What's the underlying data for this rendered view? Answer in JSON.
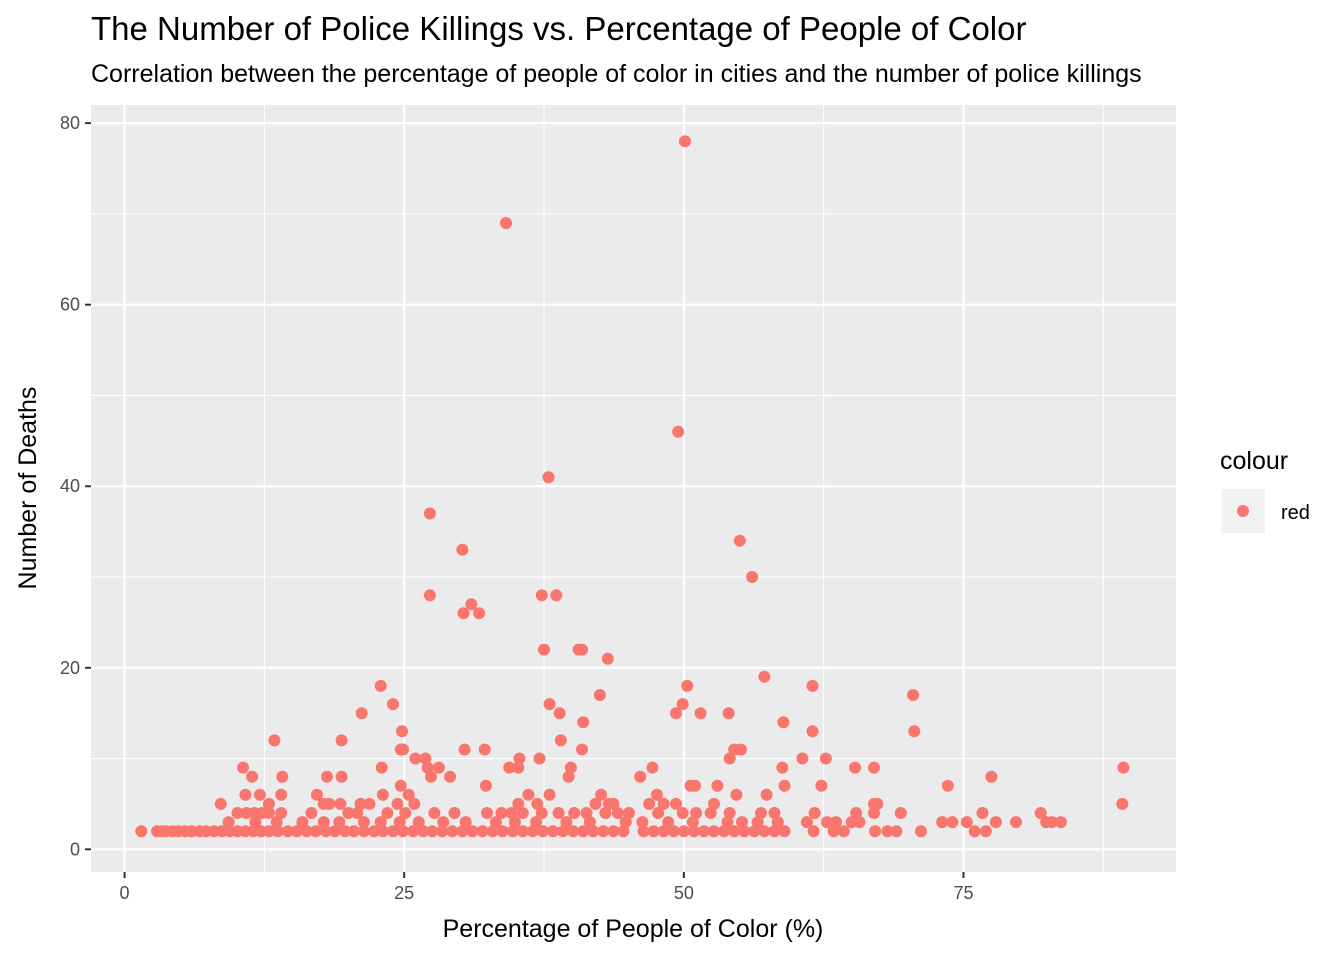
{
  "chart_data": {
    "type": "scatter",
    "title": "The Number of Police Killings vs. Percentage of People of Color",
    "subtitle": "Correlation between the percentage of people of color in cities and the number of police killings",
    "xlabel": "Percentage of People of Color (%)",
    "ylabel": "Number of Deaths",
    "xlim": [
      -3,
      94
    ],
    "ylim": [
      -2.5,
      82
    ],
    "x_ticks": [
      0,
      25,
      50,
      75
    ],
    "x_tick_labels": [
      "0",
      "25",
      "50",
      "75"
    ],
    "y_ticks": [
      0,
      20,
      40,
      60,
      80
    ],
    "y_tick_labels": [
      "0",
      "20",
      "40",
      "60",
      "80"
    ],
    "grid": true,
    "background": "#ebebeb",
    "point_color": "#f8766d",
    "legend": {
      "title": "colour",
      "position": "right",
      "entries": [
        {
          "label": "red",
          "color": "#f8766d"
        }
      ]
    },
    "series": [
      {
        "name": "red",
        "points": [
          [
            50.1,
            78
          ],
          [
            34.1,
            69
          ],
          [
            49.5,
            46
          ],
          [
            37.9,
            41
          ],
          [
            27.3,
            37
          ],
          [
            55.0,
            34
          ],
          [
            30.2,
            33
          ],
          [
            56.1,
            30
          ],
          [
            27.3,
            28
          ],
          [
            37.3,
            28
          ],
          [
            38.6,
            28
          ],
          [
            31.0,
            27
          ],
          [
            30.3,
            26
          ],
          [
            31.7,
            26
          ],
          [
            37.5,
            22
          ],
          [
            40.6,
            22
          ],
          [
            40.9,
            22
          ],
          [
            43.2,
            21
          ],
          [
            57.2,
            19
          ],
          [
            22.9,
            18
          ],
          [
            50.3,
            18
          ],
          [
            61.5,
            18
          ],
          [
            42.5,
            17
          ],
          [
            70.5,
            17
          ],
          [
            24.0,
            16
          ],
          [
            38.0,
            16
          ],
          [
            49.9,
            16
          ],
          [
            21.2,
            15
          ],
          [
            38.9,
            15
          ],
          [
            49.3,
            15
          ],
          [
            51.5,
            15
          ],
          [
            54.0,
            15
          ],
          [
            41.0,
            14
          ],
          [
            58.9,
            14
          ],
          [
            24.8,
            13
          ],
          [
            61.5,
            13
          ],
          [
            70.6,
            13
          ],
          [
            13.4,
            12
          ],
          [
            19.4,
            12
          ],
          [
            39.0,
            12
          ],
          [
            24.7,
            11
          ],
          [
            24.9,
            11
          ],
          [
            30.4,
            11
          ],
          [
            32.2,
            11
          ],
          [
            40.9,
            11
          ],
          [
            54.5,
            11
          ],
          [
            55.1,
            11
          ],
          [
            26.0,
            10
          ],
          [
            26.9,
            10
          ],
          [
            35.3,
            10
          ],
          [
            37.1,
            10
          ],
          [
            54.1,
            10
          ],
          [
            60.6,
            10
          ],
          [
            62.7,
            10
          ],
          [
            10.6,
            9
          ],
          [
            23.0,
            9
          ],
          [
            27.1,
            9
          ],
          [
            28.1,
            9
          ],
          [
            34.4,
            9
          ],
          [
            35.2,
            9
          ],
          [
            39.9,
            9
          ],
          [
            47.2,
            9
          ],
          [
            58.8,
            9
          ],
          [
            65.3,
            9
          ],
          [
            67.0,
            9
          ],
          [
            89.3,
            9
          ],
          [
            11.4,
            8
          ],
          [
            14.1,
            8
          ],
          [
            18.1,
            8
          ],
          [
            19.4,
            8
          ],
          [
            27.4,
            8
          ],
          [
            29.1,
            8
          ],
          [
            39.7,
            8
          ],
          [
            46.1,
            8
          ],
          [
            77.5,
            8
          ],
          [
            24.7,
            7
          ],
          [
            32.3,
            7
          ],
          [
            50.6,
            7
          ],
          [
            51.0,
            7
          ],
          [
            53.0,
            7
          ],
          [
            59.0,
            7
          ],
          [
            62.3,
            7
          ],
          [
            73.6,
            7
          ],
          [
            10.8,
            6
          ],
          [
            12.1,
            6
          ],
          [
            14.0,
            6
          ],
          [
            17.2,
            6
          ],
          [
            23.1,
            6
          ],
          [
            25.4,
            6
          ],
          [
            36.1,
            6
          ],
          [
            38.0,
            6
          ],
          [
            42.6,
            6
          ],
          [
            47.6,
            6
          ],
          [
            54.7,
            6
          ],
          [
            57.4,
            6
          ],
          [
            8.6,
            5
          ],
          [
            12.9,
            5
          ],
          [
            17.8,
            5
          ],
          [
            18.3,
            5
          ],
          [
            19.3,
            5
          ],
          [
            21.1,
            5
          ],
          [
            21.9,
            5
          ],
          [
            24.4,
            5
          ],
          [
            25.9,
            5
          ],
          [
            35.2,
            5
          ],
          [
            36.9,
            5
          ],
          [
            42.1,
            5
          ],
          [
            43.3,
            5
          ],
          [
            43.7,
            5
          ],
          [
            46.9,
            5
          ],
          [
            48.2,
            5
          ],
          [
            49.3,
            5
          ],
          [
            52.7,
            5
          ],
          [
            67.0,
            5
          ],
          [
            67.3,
            5
          ],
          [
            89.2,
            5
          ],
          [
            10.1,
            4
          ],
          [
            10.9,
            4
          ],
          [
            11.6,
            4
          ],
          [
            12.3,
            4
          ],
          [
            12.9,
            4
          ],
          [
            14.0,
            4
          ],
          [
            16.7,
            4
          ],
          [
            20.0,
            4
          ],
          [
            20.8,
            4
          ],
          [
            23.5,
            4
          ],
          [
            25.1,
            4
          ],
          [
            27.7,
            4
          ],
          [
            29.5,
            4
          ],
          [
            32.4,
            4
          ],
          [
            33.7,
            4
          ],
          [
            34.6,
            4
          ],
          [
            35.6,
            4
          ],
          [
            37.3,
            4
          ],
          [
            38.8,
            4
          ],
          [
            40.2,
            4
          ],
          [
            41.3,
            4
          ],
          [
            43.0,
            4
          ],
          [
            44.1,
            4
          ],
          [
            45.1,
            4
          ],
          [
            47.7,
            4
          ],
          [
            49.9,
            4
          ],
          [
            51.1,
            4
          ],
          [
            52.4,
            4
          ],
          [
            54.1,
            4
          ],
          [
            56.9,
            4
          ],
          [
            58.1,
            4
          ],
          [
            61.7,
            4
          ],
          [
            65.4,
            4
          ],
          [
            67.0,
            4
          ],
          [
            69.4,
            4
          ],
          [
            76.7,
            4
          ],
          [
            81.9,
            4
          ],
          [
            9.3,
            3
          ],
          [
            11.7,
            3
          ],
          [
            13.6,
            3
          ],
          [
            15.9,
            3
          ],
          [
            17.8,
            3
          ],
          [
            19.2,
            3
          ],
          [
            21.4,
            3
          ],
          [
            22.9,
            3
          ],
          [
            24.6,
            3
          ],
          [
            26.3,
            3
          ],
          [
            28.5,
            3
          ],
          [
            30.5,
            3
          ],
          [
            33.2,
            3
          ],
          [
            34.9,
            3
          ],
          [
            36.8,
            3
          ],
          [
            39.5,
            3
          ],
          [
            41.6,
            3
          ],
          [
            44.8,
            3
          ],
          [
            46.3,
            3
          ],
          [
            48.6,
            3
          ],
          [
            50.8,
            3
          ],
          [
            53.9,
            3
          ],
          [
            55.2,
            3
          ],
          [
            56.6,
            3
          ],
          [
            58.4,
            3
          ],
          [
            61.0,
            3
          ],
          [
            62.8,
            3
          ],
          [
            63.6,
            3
          ],
          [
            65.0,
            3
          ],
          [
            65.7,
            3
          ],
          [
            73.1,
            3
          ],
          [
            74.0,
            3
          ],
          [
            75.3,
            3
          ],
          [
            77.9,
            3
          ],
          [
            79.7,
            3
          ],
          [
            82.4,
            3
          ],
          [
            82.9,
            3
          ],
          [
            83.7,
            3
          ],
          [
            1.5,
            2
          ],
          [
            2.9,
            2
          ],
          [
            3.3,
            2
          ],
          [
            3.7,
            2
          ],
          [
            4.3,
            2
          ],
          [
            4.8,
            2
          ],
          [
            5.4,
            2
          ],
          [
            6.0,
            2
          ],
          [
            6.7,
            2
          ],
          [
            7.3,
            2
          ],
          [
            8.0,
            2
          ],
          [
            8.7,
            2
          ],
          [
            9.4,
            2
          ],
          [
            10.1,
            2
          ],
          [
            10.8,
            2
          ],
          [
            11.5,
            2
          ],
          [
            12.2,
            2
          ],
          [
            12.9,
            2
          ],
          [
            13.7,
            2
          ],
          [
            14.6,
            2
          ],
          [
            15.4,
            2
          ],
          [
            16.3,
            2
          ],
          [
            17.1,
            2
          ],
          [
            18.0,
            2
          ],
          [
            18.8,
            2
          ],
          [
            19.7,
            2
          ],
          [
            20.5,
            2
          ],
          [
            21.4,
            2
          ],
          [
            22.3,
            2
          ],
          [
            23.1,
            2
          ],
          [
            24.0,
            2
          ],
          [
            24.9,
            2
          ],
          [
            25.8,
            2
          ],
          [
            26.7,
            2
          ],
          [
            27.5,
            2
          ],
          [
            28.4,
            2
          ],
          [
            29.3,
            2
          ],
          [
            30.2,
            2
          ],
          [
            31.1,
            2
          ],
          [
            32.0,
            2
          ],
          [
            32.9,
            2
          ],
          [
            33.8,
            2
          ],
          [
            34.7,
            2
          ],
          [
            35.6,
            2
          ],
          [
            36.5,
            2
          ],
          [
            37.4,
            2
          ],
          [
            38.3,
            2
          ],
          [
            39.2,
            2
          ],
          [
            40.1,
            2
          ],
          [
            41.0,
            2
          ],
          [
            41.9,
            2
          ],
          [
            42.8,
            2
          ],
          [
            43.7,
            2
          ],
          [
            44.6,
            2
          ],
          [
            46.4,
            2
          ],
          [
            47.3,
            2
          ],
          [
            48.2,
            2
          ],
          [
            49.1,
            2
          ],
          [
            50.0,
            2
          ],
          [
            50.9,
            2
          ],
          [
            51.8,
            2
          ],
          [
            52.7,
            2
          ],
          [
            53.6,
            2
          ],
          [
            54.5,
            2
          ],
          [
            55.4,
            2
          ],
          [
            56.3,
            2
          ],
          [
            57.2,
            2
          ],
          [
            58.1,
            2
          ],
          [
            59.0,
            2
          ],
          [
            61.6,
            2
          ],
          [
            63.4,
            2
          ],
          [
            64.3,
            2
          ],
          [
            67.1,
            2
          ],
          [
            68.2,
            2
          ],
          [
            69.0,
            2
          ],
          [
            71.2,
            2
          ],
          [
            76.0,
            2
          ],
          [
            77.0,
            2
          ]
        ]
      }
    ]
  }
}
